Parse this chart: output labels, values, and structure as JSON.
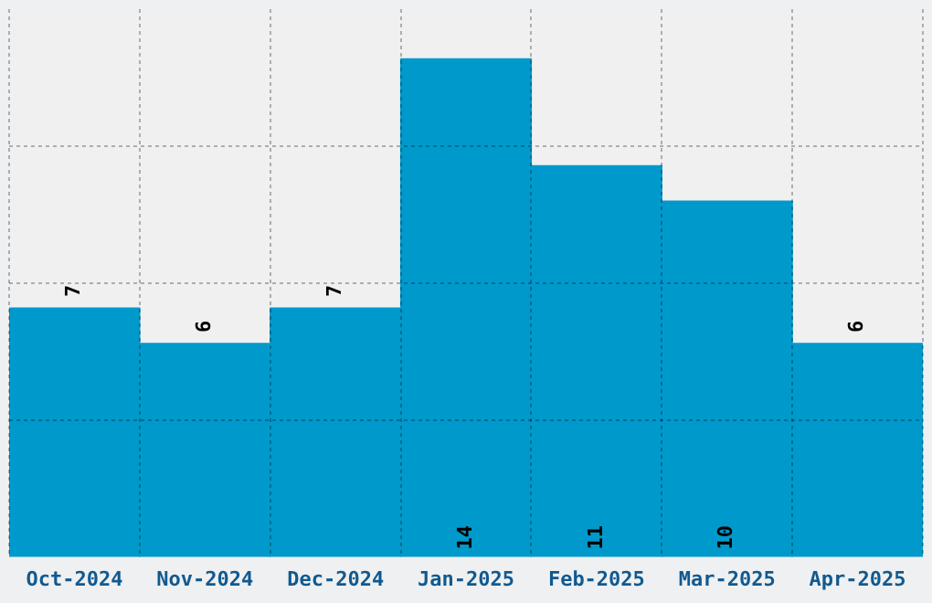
{
  "chart_data": {
    "type": "bar",
    "categories": [
      "Oct-2024",
      "Nov-2024",
      "Dec-2024",
      "Jan-2025",
      "Feb-2025",
      "Mar-2025",
      "Apr-2025"
    ],
    "values": [
      7,
      6,
      7,
      14,
      11,
      10,
      6
    ],
    "color": "#0099cc",
    "ylim": [
      0,
      15.4
    ],
    "yticks": [
      {
        "value": 3.85,
        "label": null
      },
      {
        "value": 7.7,
        "label": null
      },
      {
        "value": 11.55,
        "label": null
      }
    ],
    "grid": true,
    "data_labels": true,
    "tick_labels": "x"
  }
}
